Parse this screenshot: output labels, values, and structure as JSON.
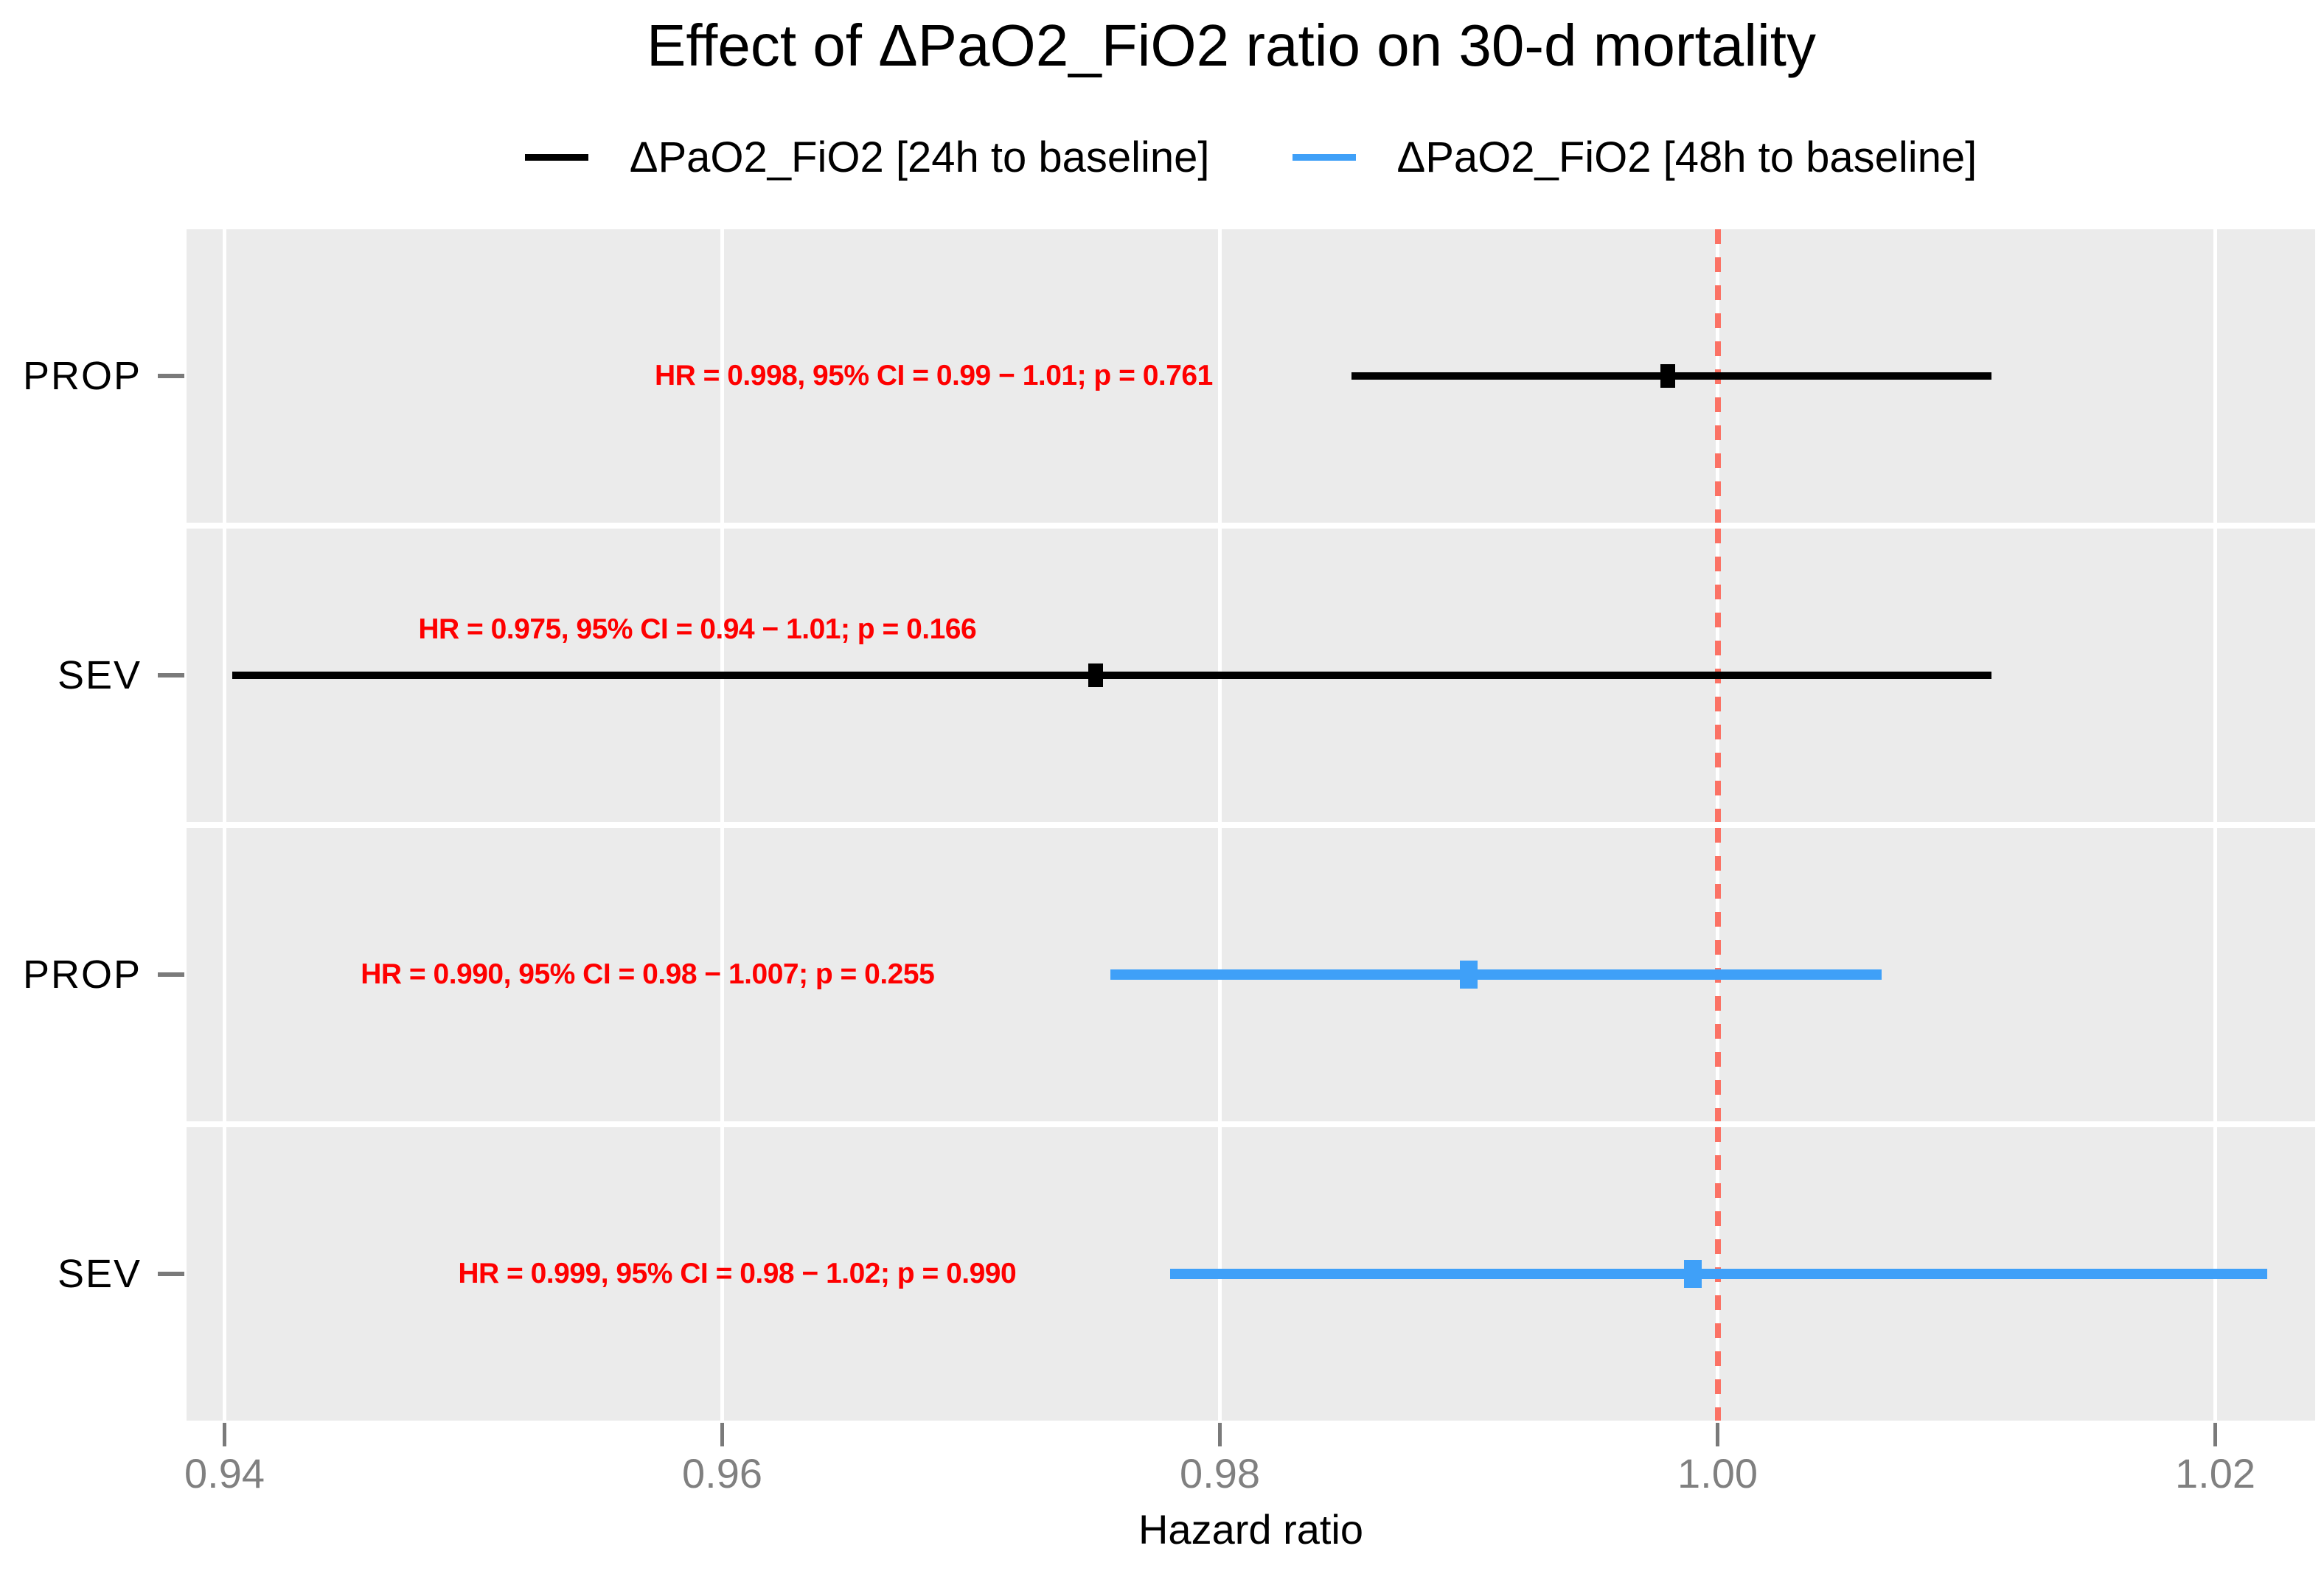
{
  "colors": {
    "panel_bg": "#EBEBEB",
    "gridline": "#FFFFFF",
    "reference_line": "#FB7265",
    "annotation_text": "#FE0000",
    "axis_text": "#808080",
    "tick_mark": "#7A7A7A",
    "series_24h": "#000000",
    "series_48h": "#3FA0F8"
  },
  "chart_data": {
    "type": "forest",
    "title": "Effect of ΔPaO2_FiO2 ratio on 30-d mortality",
    "xlabel": "Hazard ratio",
    "x_ticks": [
      "0.94",
      "0.96",
      "0.98",
      "1.00",
      "1.02"
    ],
    "x_tick_values": [
      0.94,
      0.96,
      0.98,
      1.0,
      1.02
    ],
    "xlim": [
      0.9385,
      1.024
    ],
    "ref_line": 1.0,
    "grid": "major-x-only",
    "legend_position": "top",
    "series": [
      {
        "name": "ΔPaO2_FiO2 [24h to baseline]",
        "color": "#000000"
      },
      {
        "name": "ΔPaO2_FiO2 [48h to baseline]",
        "color": "#3FA0F8"
      }
    ],
    "rows": [
      {
        "group": "PROP",
        "series": 0,
        "hr": 0.998,
        "ci_low": 0.9853,
        "ci_high": 1.011,
        "p": 0.761,
        "annotation": "HR = 0.998, 95% CI = 0.99 − 1.01; p = 0.761",
        "label_x": 0.9685,
        "label_dy": 0
      },
      {
        "group": "SEV",
        "series": 0,
        "hr": 0.975,
        "ci_low": 0.9403,
        "ci_high": 1.011,
        "p": 0.166,
        "annotation": "HR = 0.975, 95% CI = 0.94 − 1.01; p = 0.166",
        "label_x": 0.959,
        "label_dy": -62
      },
      {
        "group": "PROP",
        "series": 1,
        "hr": 0.99,
        "ci_low": 0.9756,
        "ci_high": 1.0066,
        "p": 0.255,
        "annotation": "HR = 0.990, 95% CI = 0.98 − 1.007; p = 0.255",
        "label_x": 0.957,
        "label_dy": 0
      },
      {
        "group": "SEV",
        "series": 1,
        "hr": 0.999,
        "ci_low": 0.978,
        "ci_high": 1.0221,
        "p": 0.99,
        "annotation": "HR = 0.999, 95% CI = 0.98 − 1.02; p = 0.990",
        "label_x": 0.9606,
        "label_dy": 0
      }
    ]
  }
}
